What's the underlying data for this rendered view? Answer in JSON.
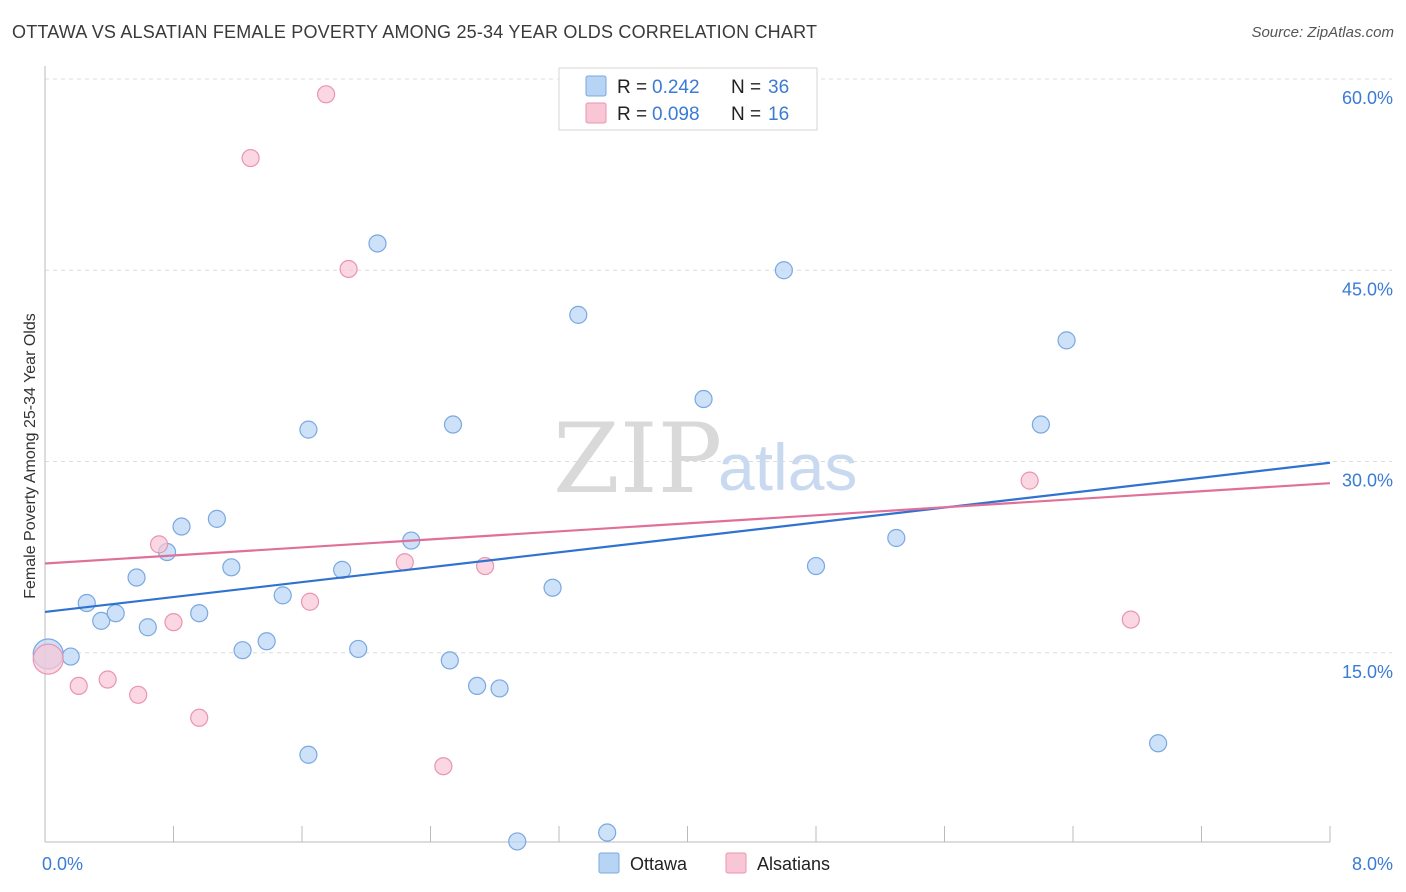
{
  "title": "OTTAWA VS ALSATIAN FEMALE POVERTY AMONG 25-34 YEAR OLDS CORRELATION CHART",
  "source": "Source: ZipAtlas.com",
  "watermark": {
    "zip": "ZIP",
    "atlas": "atlas"
  },
  "legend": {
    "r_label": "R =",
    "n_label": "N =",
    "rows": [
      {
        "r": "0.242",
        "n": "36"
      },
      {
        "r": "0.098",
        "n": "16"
      }
    ]
  },
  "chart_data": {
    "type": "scatter",
    "title": "OTTAWA VS ALSATIAN FEMALE POVERTY AMONG 25-34 YEAR OLDS CORRELATION CHART",
    "xlabel": "",
    "ylabel": "Female Poverty Among 25-34 Year Olds",
    "xlim": [
      0,
      8
    ],
    "ylim": [
      0,
      60
    ],
    "x_tick_labels": [
      "0.0%",
      "8.0%"
    ],
    "y_ticks": [
      15,
      30,
      45,
      60
    ],
    "y_tick_labels": [
      "15.0%",
      "30.0%",
      "45.0%",
      "60.0%"
    ],
    "grid": true,
    "legend_position": "top-center",
    "colors": {
      "ottawa_fill": "#b8d4f5",
      "ottawa_stroke": "#7aa8e0",
      "ottawa_line": "#2f72d0",
      "alsatian_fill": "#f8c6d5",
      "alsatian_stroke": "#e995b0",
      "alsatian_line": "#e0709a"
    },
    "series": [
      {
        "name": "Ottawa",
        "r": 0.242,
        "n": 36,
        "points": [
          [
            0.02,
            14.9
          ],
          [
            0.16,
            14.7
          ],
          [
            0.26,
            18.9
          ],
          [
            0.35,
            17.5
          ],
          [
            0.44,
            18.1
          ],
          [
            0.57,
            20.9
          ],
          [
            0.64,
            17.0
          ],
          [
            0.76,
            22.9
          ],
          [
            0.85,
            24.9
          ],
          [
            0.96,
            18.1
          ],
          [
            1.07,
            25.5
          ],
          [
            1.16,
            21.7
          ],
          [
            1.23,
            15.2
          ],
          [
            1.38,
            15.9
          ],
          [
            1.48,
            19.5
          ],
          [
            1.64,
            7.0
          ],
          [
            1.64,
            32.5
          ],
          [
            1.85,
            21.5
          ],
          [
            1.95,
            15.3
          ],
          [
            2.07,
            47.1
          ],
          [
            2.28,
            23.8
          ],
          [
            2.52,
            14.4
          ],
          [
            2.54,
            32.9
          ],
          [
            2.69,
            12.4
          ],
          [
            2.83,
            12.2
          ],
          [
            2.94,
            0.2
          ],
          [
            3.16,
            20.1
          ],
          [
            3.32,
            41.5
          ],
          [
            3.5,
            0.9
          ],
          [
            4.1,
            34.9
          ],
          [
            4.6,
            45.0
          ],
          [
            4.8,
            21.8
          ],
          [
            5.3,
            24.0
          ],
          [
            6.2,
            32.9
          ],
          [
            6.36,
            39.5
          ],
          [
            6.93,
            7.9
          ]
        ],
        "trend": [
          [
            0,
            18.2
          ],
          [
            8,
            29.9
          ]
        ]
      },
      {
        "name": "Alsatians",
        "r": 0.098,
        "n": 16,
        "points": [
          [
            0.02,
            14.5
          ],
          [
            0.21,
            12.4
          ],
          [
            0.39,
            12.9
          ],
          [
            0.58,
            11.7
          ],
          [
            0.71,
            23.5
          ],
          [
            0.8,
            17.4
          ],
          [
            0.96,
            9.9
          ],
          [
            1.28,
            53.8
          ],
          [
            1.65,
            19.0
          ],
          [
            1.75,
            58.8
          ],
          [
            1.89,
            45.1
          ],
          [
            2.24,
            22.1
          ],
          [
            2.48,
            6.1
          ],
          [
            2.74,
            21.8
          ],
          [
            6.13,
            28.5
          ],
          [
            6.76,
            17.6
          ]
        ],
        "trend": [
          [
            0,
            22.0
          ],
          [
            8,
            28.3
          ]
        ]
      }
    ]
  }
}
